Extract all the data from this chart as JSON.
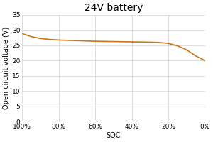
{
  "title": "24V battery",
  "xlabel": "SOC",
  "ylabel": "Open circuit voltage (V)",
  "line_color": "#c8781a",
  "background_color": "#ffffff",
  "plot_background": "#ffffff",
  "grid_color": "#d9d9d9",
  "ylim": [
    0,
    35
  ],
  "yticks": [
    0,
    5,
    10,
    15,
    20,
    25,
    30,
    35
  ],
  "xtick_values": [
    100,
    80,
    60,
    40,
    20,
    0
  ],
  "xtick_labels": [
    "100%",
    "80%",
    "60%",
    "40%",
    "20%",
    "0%"
  ],
  "soc_values": [
    100,
    95,
    90,
    85,
    80,
    75,
    70,
    65,
    60,
    55,
    50,
    45,
    40,
    35,
    30,
    25,
    20,
    15,
    10,
    5,
    0
  ],
  "voltage_values": [
    28.8,
    27.8,
    27.2,
    26.9,
    26.7,
    26.6,
    26.5,
    26.4,
    26.3,
    26.25,
    26.2,
    26.15,
    26.1,
    26.05,
    26.0,
    25.9,
    25.6,
    24.8,
    23.5,
    21.5,
    20.0
  ],
  "title_fontsize": 10,
  "axis_fontsize": 7,
  "tick_fontsize": 6.5,
  "line_width": 1.2
}
